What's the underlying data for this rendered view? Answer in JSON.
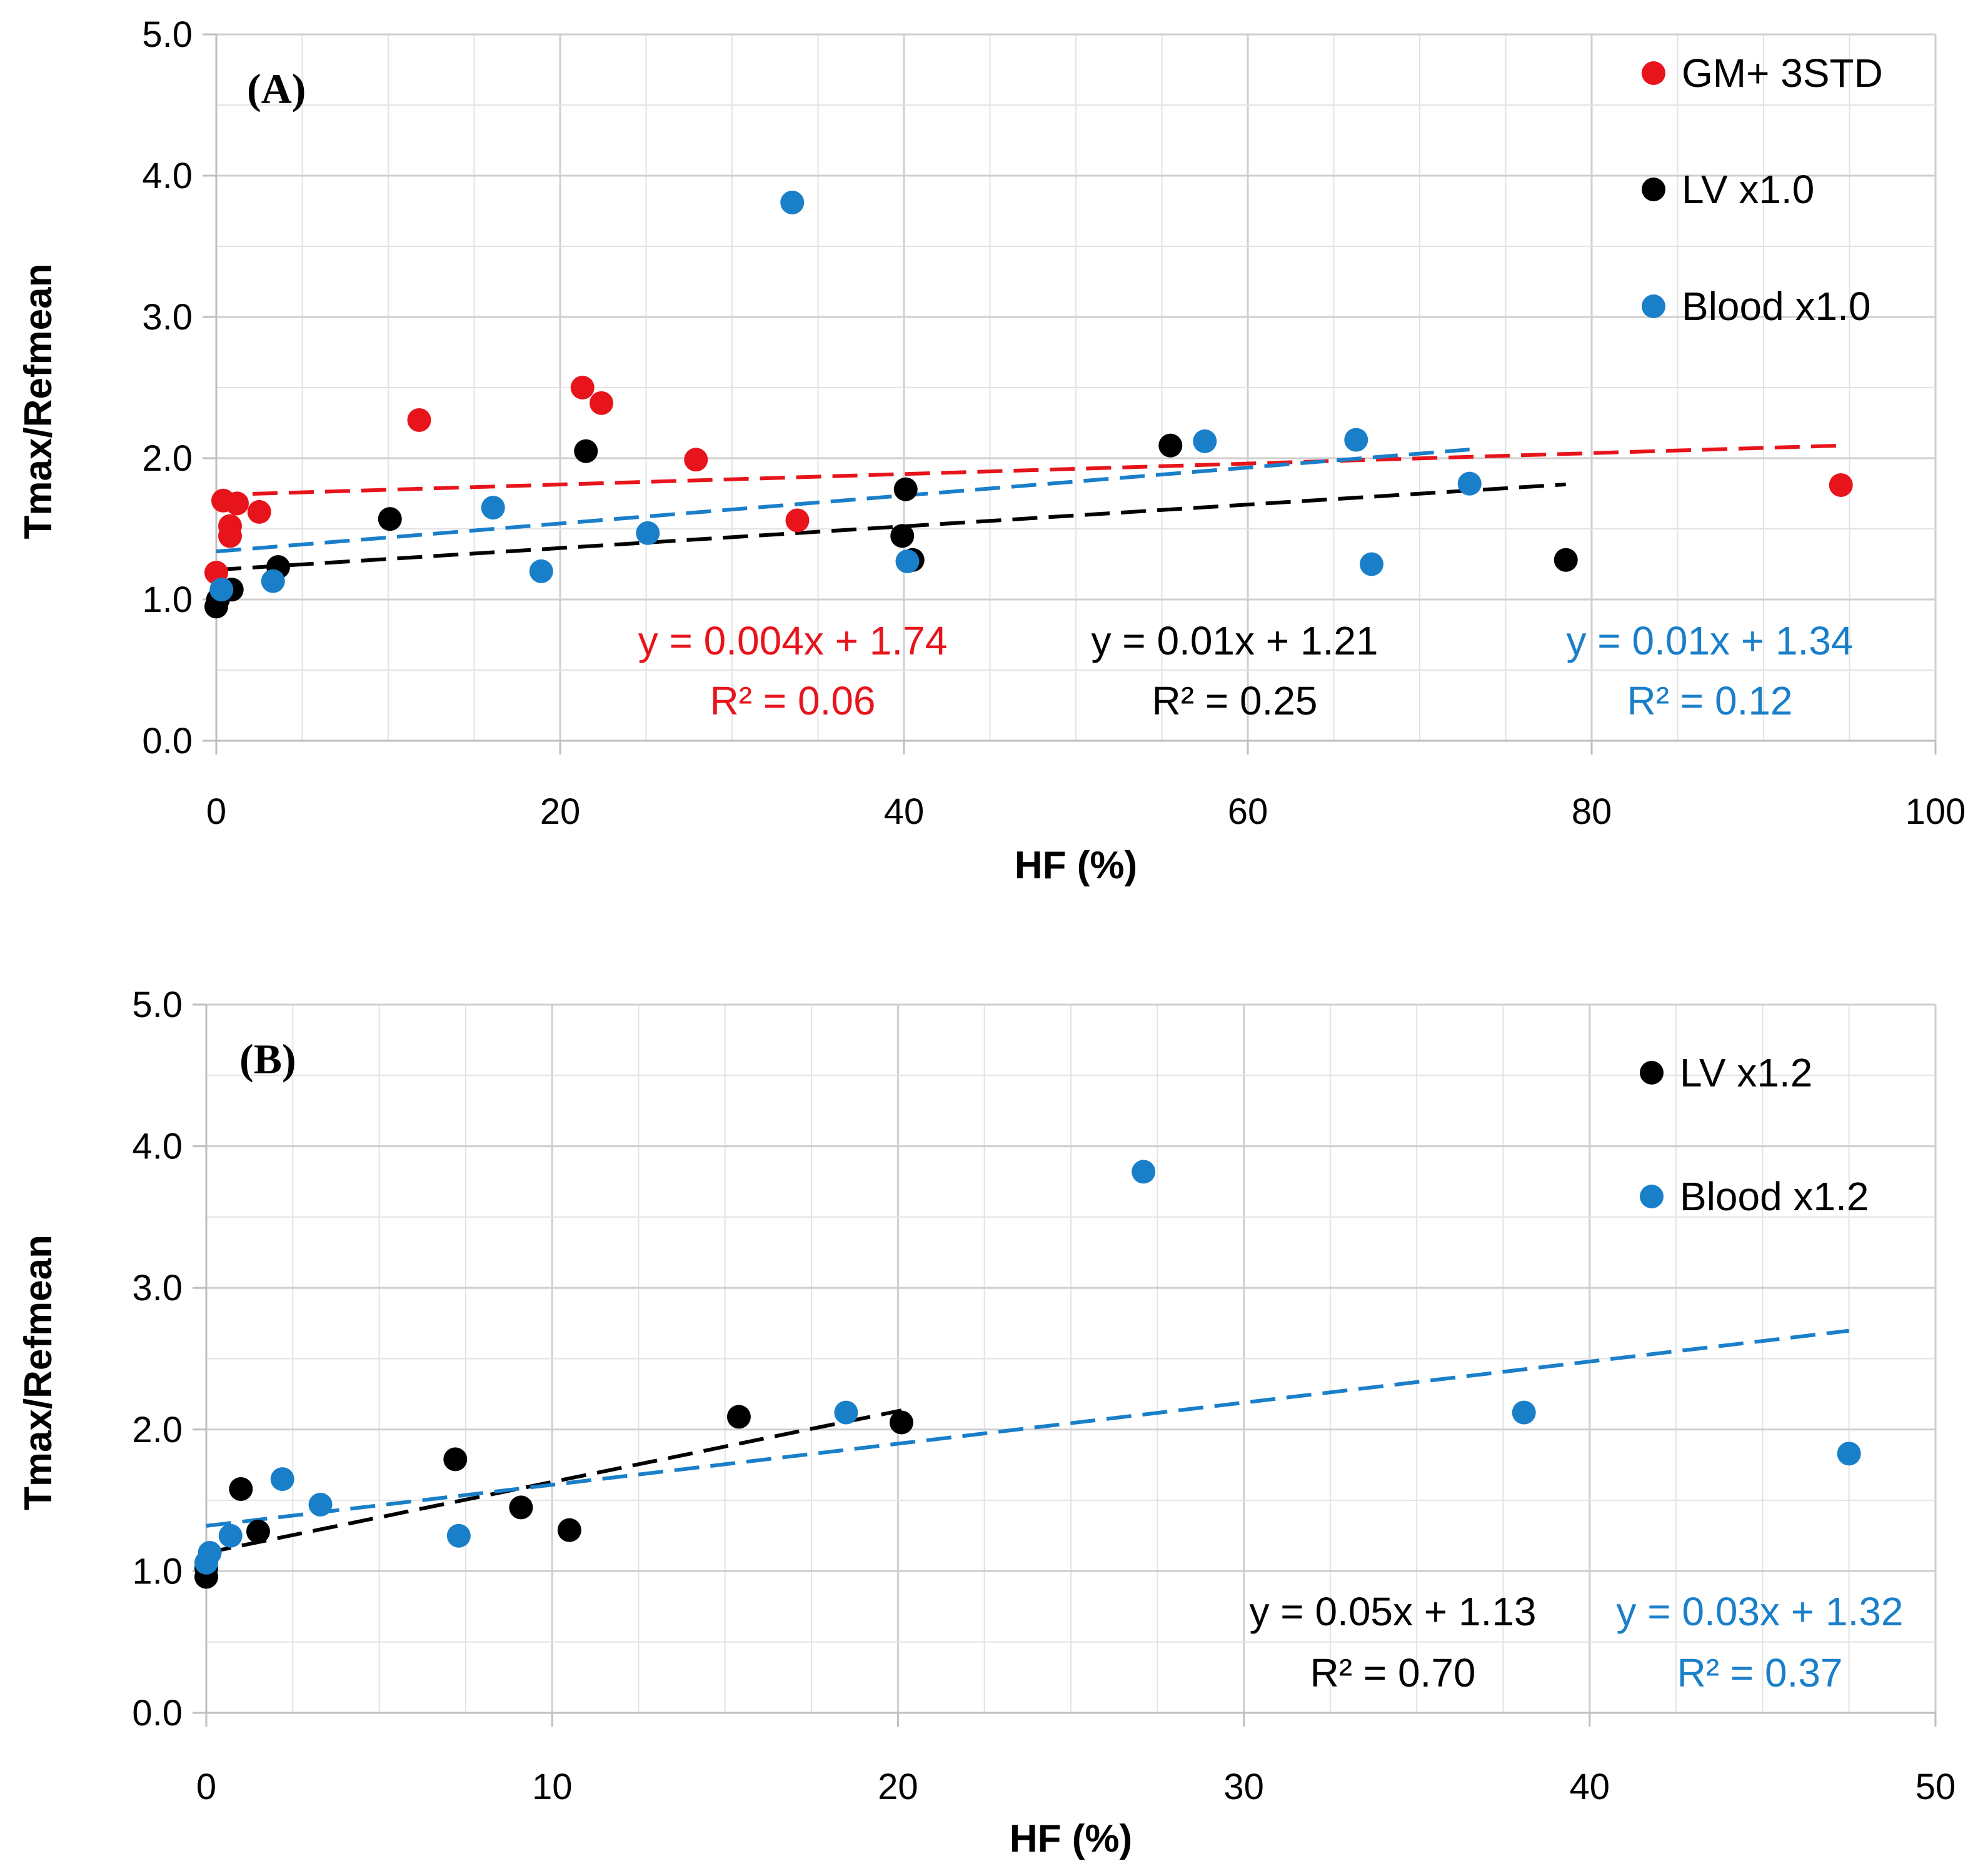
{
  "colors": {
    "red": "#e8141b",
    "black": "#000000",
    "blue": "#1a7fc9",
    "grid": "#d9d9d9",
    "axis": "#bfbfbf"
  },
  "chart_data": [
    {
      "type": "scatter",
      "panel_label": "(A)",
      "xlabel": "HF (%)",
      "ylabel": "Tmax/Refmean",
      "xlim": [
        0,
        100
      ],
      "ylim": [
        0,
        5
      ],
      "x_ticks": [
        "0",
        "20",
        "40",
        "60",
        "80",
        "100"
      ],
      "y_ticks": [
        "0.0",
        "1.0",
        "2.0",
        "3.0",
        "4.0",
        "5.0"
      ],
      "grid": true,
      "legend_position": "top-right",
      "series": [
        {
          "name": "GM+ 3STD",
          "color": "red",
          "points": [
            [
              0.0,
              1.19
            ],
            [
              0.4,
              1.7
            ],
            [
              0.8,
              1.52
            ],
            [
              0.8,
              1.45
            ],
            [
              1.2,
              1.68
            ],
            [
              2.5,
              1.62
            ],
            [
              11.8,
              2.27
            ],
            [
              21.3,
              2.5
            ],
            [
              22.4,
              2.39
            ],
            [
              27.9,
              1.99
            ],
            [
              33.8,
              1.56
            ],
            [
              94.5,
              1.81
            ]
          ],
          "trend": {
            "x": [
              0,
              94.5
            ],
            "slope": 0.0037,
            "intercept": 1.74
          },
          "equation": "y = 0.004x + 1.74",
          "r2": "R² = 0.06"
        },
        {
          "name": "LV x1.0",
          "color": "black",
          "points": [
            [
              0.0,
              0.95
            ],
            [
              0.1,
              1.0
            ],
            [
              0.9,
              1.07
            ],
            [
              3.6,
              1.23
            ],
            [
              10.1,
              1.57
            ],
            [
              21.5,
              2.05
            ],
            [
              39.9,
              1.45
            ],
            [
              40.1,
              1.78
            ],
            [
              40.5,
              1.28
            ],
            [
              55.5,
              2.09
            ],
            [
              78.5,
              1.28
            ]
          ],
          "trend": {
            "x": [
              0,
              78.5
            ],
            "slope": 0.0077,
            "intercept": 1.21
          },
          "equation": "y = 0.01x + 1.21",
          "r2": "R² = 0.25"
        },
        {
          "name": "Blood x1.0",
          "color": "blue",
          "points": [
            [
              0.3,
              1.07
            ],
            [
              3.3,
              1.13
            ],
            [
              16.1,
              1.65
            ],
            [
              18.9,
              1.2
            ],
            [
              25.1,
              1.47
            ],
            [
              33.5,
              3.81
            ],
            [
              40.2,
              1.27
            ],
            [
              57.5,
              2.12
            ],
            [
              66.3,
              2.13
            ],
            [
              67.2,
              1.25
            ],
            [
              72.9,
              1.82
            ]
          ],
          "trend": {
            "x": [
              0,
              72.9
            ],
            "slope": 0.0099,
            "intercept": 1.34
          },
          "equation": "y = 0.01x + 1.34",
          "r2": "R² = 0.12"
        }
      ]
    },
    {
      "type": "scatter",
      "panel_label": "(B)",
      "xlabel": "HF (%)",
      "ylabel": "Tmax/Refmean",
      "xlim": [
        0,
        50
      ],
      "ylim": [
        0,
        5
      ],
      "x_ticks": [
        "0",
        "10",
        "20",
        "30",
        "40",
        "50"
      ],
      "y_ticks": [
        "0.0",
        "1.0",
        "2.0",
        "3.0",
        "4.0",
        "5.0"
      ],
      "grid": true,
      "legend_position": "top-right",
      "series": [
        {
          "name": "LV x1.2",
          "color": "black",
          "points": [
            [
              0.0,
              0.96
            ],
            [
              0.0,
              1.02
            ],
            [
              1.0,
              1.58
            ],
            [
              1.5,
              1.28
            ],
            [
              7.2,
              1.79
            ],
            [
              9.1,
              1.45
            ],
            [
              10.5,
              1.29
            ],
            [
              15.4,
              2.09
            ],
            [
              20.1,
              2.05
            ]
          ],
          "trend": {
            "x": [
              0,
              20.1
            ],
            "slope": 0.05,
            "intercept": 1.13
          },
          "equation": "y = 0.05x + 1.13",
          "r2": "R² = 0.70"
        },
        {
          "name": "Blood x1.2",
          "color": "blue",
          "points": [
            [
              0.0,
              1.06
            ],
            [
              0.1,
              1.13
            ],
            [
              0.7,
              1.25
            ],
            [
              2.2,
              1.65
            ],
            [
              3.3,
              1.47
            ],
            [
              7.3,
              1.25
            ],
            [
              18.5,
              2.12
            ],
            [
              27.1,
              3.82
            ],
            [
              38.1,
              2.12
            ],
            [
              47.5,
              1.83
            ]
          ],
          "trend": {
            "x": [
              0,
              47.5
            ],
            "slope": 0.029,
            "intercept": 1.32
          },
          "equation": "y = 0.03x + 1.32",
          "r2": "R² = 0.37"
        }
      ]
    }
  ]
}
